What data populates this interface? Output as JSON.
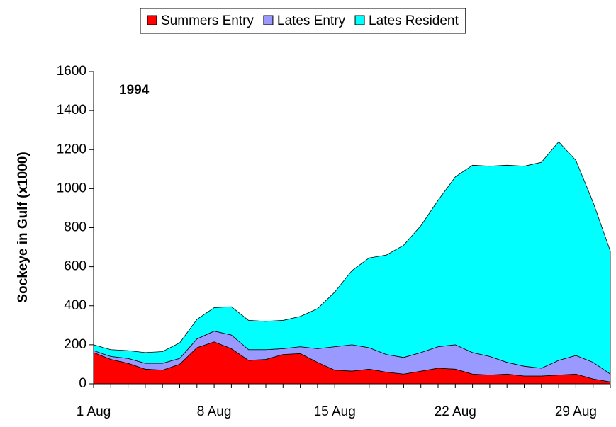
{
  "chart_data": {
    "type": "stacked-area",
    "annotation": "1994",
    "y_label": "Sockeye in Gulf (x1000)",
    "categories": [
      "1 Aug",
      null,
      null,
      null,
      null,
      null,
      null,
      "8 Aug",
      null,
      null,
      null,
      null,
      null,
      null,
      "15 Aug",
      null,
      null,
      null,
      null,
      null,
      null,
      "22 Aug",
      null,
      null,
      null,
      null,
      null,
      null,
      "29 Aug",
      null,
      null
    ],
    "series": [
      {
        "name": "Summers Entry",
        "color": "#ff0000",
        "values": [
          160,
          125,
          105,
          75,
          70,
          100,
          185,
          215,
          180,
          120,
          125,
          150,
          155,
          110,
          70,
          65,
          75,
          60,
          50,
          65,
          80,
          75,
          50,
          45,
          50,
          40,
          40,
          45,
          50,
          25,
          10
        ]
      },
      {
        "name": "Lates Entry",
        "color": "#9999ff",
        "values": [
          10,
          15,
          25,
          30,
          35,
          30,
          45,
          55,
          70,
          55,
          50,
          30,
          35,
          70,
          120,
          135,
          110,
          90,
          85,
          95,
          110,
          125,
          110,
          95,
          60,
          50,
          40,
          75,
          95,
          85,
          40
        ]
      },
      {
        "name": "Lates Resident",
        "color": "#00ffff",
        "values": [
          30,
          35,
          40,
          55,
          60,
          80,
          100,
          120,
          145,
          150,
          145,
          145,
          155,
          205,
          280,
          380,
          460,
          510,
          575,
          650,
          750,
          860,
          960,
          975,
          1010,
          1025,
          1055,
          1120,
          1000,
          820,
          630
        ]
      }
    ],
    "ylim": [
      0,
      1600
    ],
    "yticks": [
      0,
      200,
      400,
      600,
      800,
      1000,
      1200,
      1400,
      1600
    ],
    "grid": false,
    "legend": "top"
  }
}
